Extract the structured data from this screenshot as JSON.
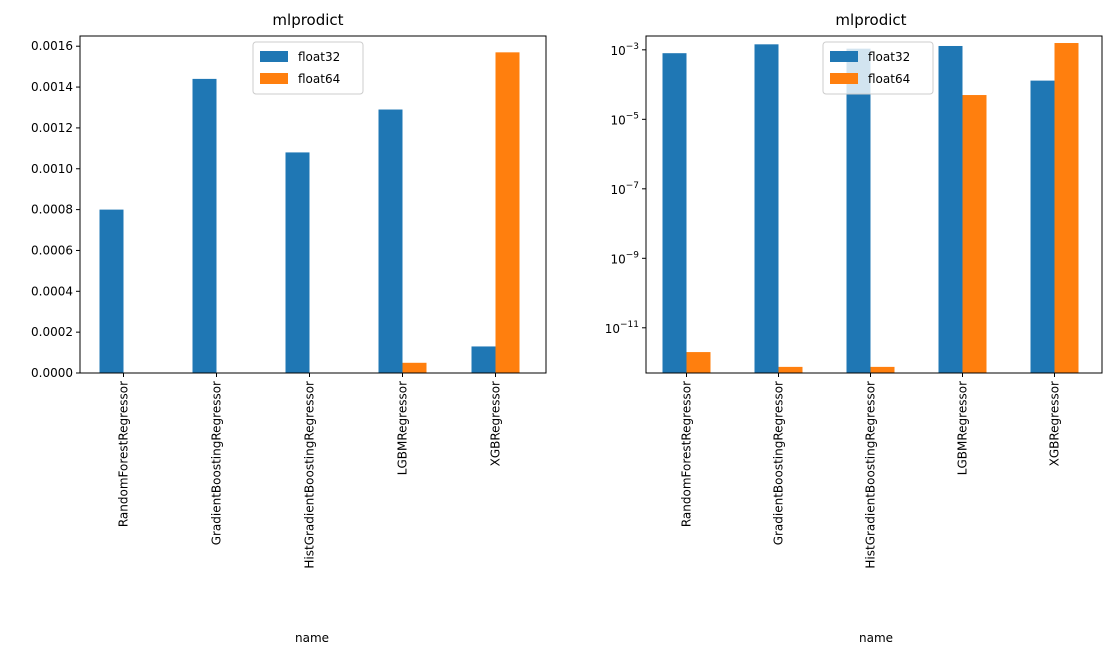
{
  "colors": {
    "float32": "#1f77b4",
    "float64": "#ff7f0e"
  },
  "chart_data": [
    {
      "type": "bar",
      "title": "mlprodict",
      "xlabel": "name",
      "ylabel": "",
      "yscale": "linear",
      "ylim": [
        0,
        0.00165
      ],
      "yticks": [
        "0.0000",
        "0.0002",
        "0.0004",
        "0.0006",
        "0.0008",
        "0.0010",
        "0.0012",
        "0.0014",
        "0.0016"
      ],
      "legend_position": "top-center",
      "grid": false,
      "categories": [
        "RandomForestRegressor",
        "GradientBoostingRegressor",
        "HistGradientBoostingRegressor",
        "LGBMRegressor",
        "XGBRegressor"
      ],
      "series": [
        {
          "name": "float32",
          "values": [
            0.0008,
            0.00144,
            0.00108,
            0.00129,
            0.00013
          ]
        },
        {
          "name": "float64",
          "values": [
            0,
            0,
            0,
            5e-05,
            0.00157
          ]
        }
      ]
    },
    {
      "type": "bar",
      "title": "mlprodict",
      "xlabel": "name",
      "ylabel": "",
      "yscale": "log",
      "ylim": [
        5e-13,
        0.0025
      ],
      "yticks": [
        "10−3",
        "10−5",
        "10−7",
        "10−9",
        "10−11"
      ],
      "legend_position": "top-center",
      "grid": false,
      "categories": [
        "RandomForestRegressor",
        "GradientBoostingRegressor",
        "HistGradientBoostingRegressor",
        "LGBMRegressor",
        "XGBRegressor"
      ],
      "series": [
        {
          "name": "float32",
          "values": [
            0.0008,
            0.00144,
            0.00108,
            0.00129,
            0.00013
          ]
        },
        {
          "name": "float64",
          "values": [
            2e-12,
            7.5e-13,
            7.5e-13,
            5e-05,
            0.00157
          ]
        }
      ]
    }
  ]
}
